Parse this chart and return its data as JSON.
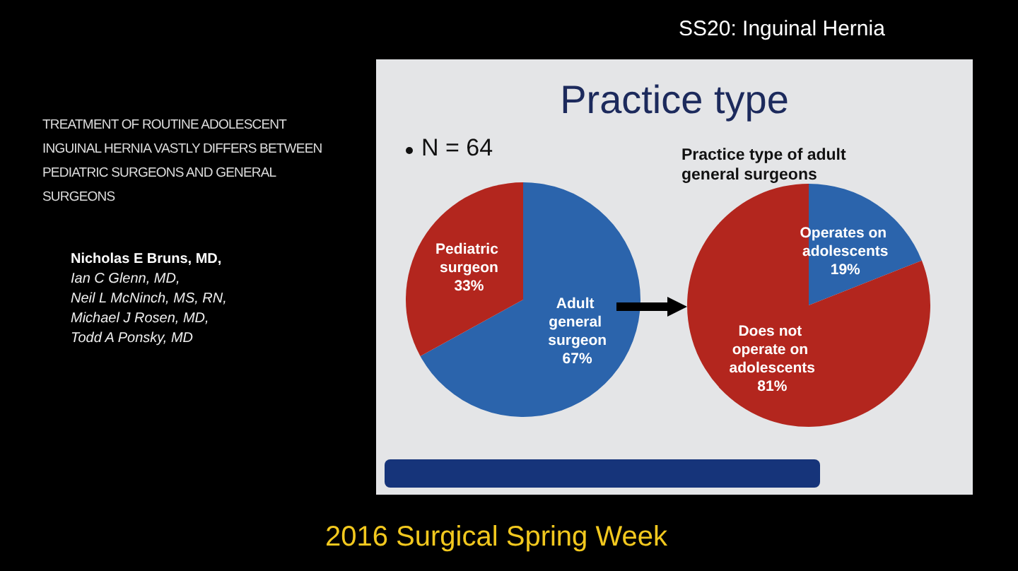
{
  "chart_data": [
    {
      "type": "pie",
      "title": "Practice type",
      "categories": [
        "Adult general surgeon",
        "Pediatric surgeon"
      ],
      "values": [
        67,
        33
      ],
      "colors": [
        "#2b64ac",
        "#b3261e"
      ],
      "value_labels": [
        "67%",
        "33%"
      ],
      "annotations": [
        "N = 64",
        "SS20: Inguinal Hernia",
        "TREATMENT OF ROUTINE ADOLESCENT INGUINAL HERNIA VASTLY DIFFERS BETWEEN PEDIATRIC SURGEONS AND GENERAL SURGEONS",
        "Nicholas E Bruns, MD,",
        "Ian C Glenn, MD,",
        "Neil L McNinch, MS, RN,",
        "Michael J Rosen, MD,",
        "Todd A Ponsky, MD",
        "2016 Surgical Spring Week"
      ]
    },
    {
      "type": "pie",
      "title": "Practice type of adult general surgeons",
      "categories": [
        "Operates on adolescents",
        "Does not operate on adolescents"
      ],
      "values": [
        19,
        81
      ],
      "colors": [
        "#2b64ac",
        "#b3261e"
      ],
      "value_labels": [
        "19%",
        "81%"
      ]
    }
  ]
}
